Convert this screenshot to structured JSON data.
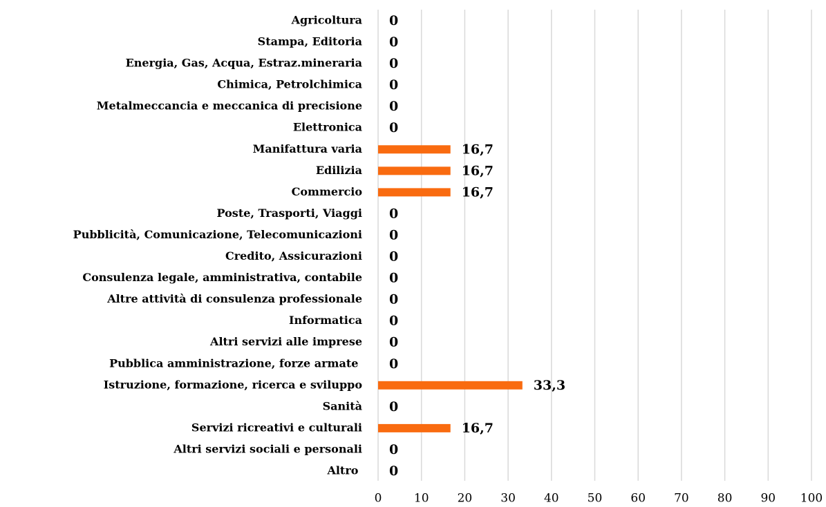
{
  "chart_data": {
    "type": "barh",
    "categories": [
      "Agricoltura",
      "Stampa, Editoria",
      "Energia, Gas, Acqua, Estraz.mineraria",
      "Chimica, Petrolchimica",
      "Metalmeccancia e meccanica di precisione",
      "Elettronica",
      "Manifattura varia",
      "Edilizia",
      "Commercio",
      "Poste, Trasporti, Viaggi",
      "Pubblicità, Comunicazione, Telecomunicazioni",
      "Credito, Assicurazioni",
      "Consulenza legale, amministrativa, contabile",
      "Altre attività di consulenza professionale",
      "Informatica",
      "Altri servizi alle imprese",
      "Pubblica amministrazione, forze armate ",
      "Istruzione, formazione, ricerca e sviluppo",
      "Sanità",
      "Servizi ricreativi e culturali",
      "Altri servizi sociali e personali",
      "Altro "
    ],
    "values": [
      0,
      0,
      0,
      0,
      0,
      0,
      16.7,
      16.7,
      16.7,
      0,
      0,
      0,
      0,
      0,
      0,
      0,
      0,
      33.3,
      0,
      16.7,
      0,
      0
    ],
    "value_labels": [
      "0",
      "0",
      "0",
      "0",
      "0",
      "0",
      "16,7",
      "16,7",
      "16,7",
      "0",
      "0",
      "0",
      "0",
      "0",
      "0",
      "0",
      "0",
      "33,3",
      "0",
      "16,7",
      "0",
      "0"
    ],
    "color": "#f96b10",
    "xlim": [
      0,
      100
    ],
    "xticks": [
      0,
      10,
      20,
      30,
      40,
      50,
      60,
      70,
      80,
      90,
      100
    ],
    "grid": true
  }
}
